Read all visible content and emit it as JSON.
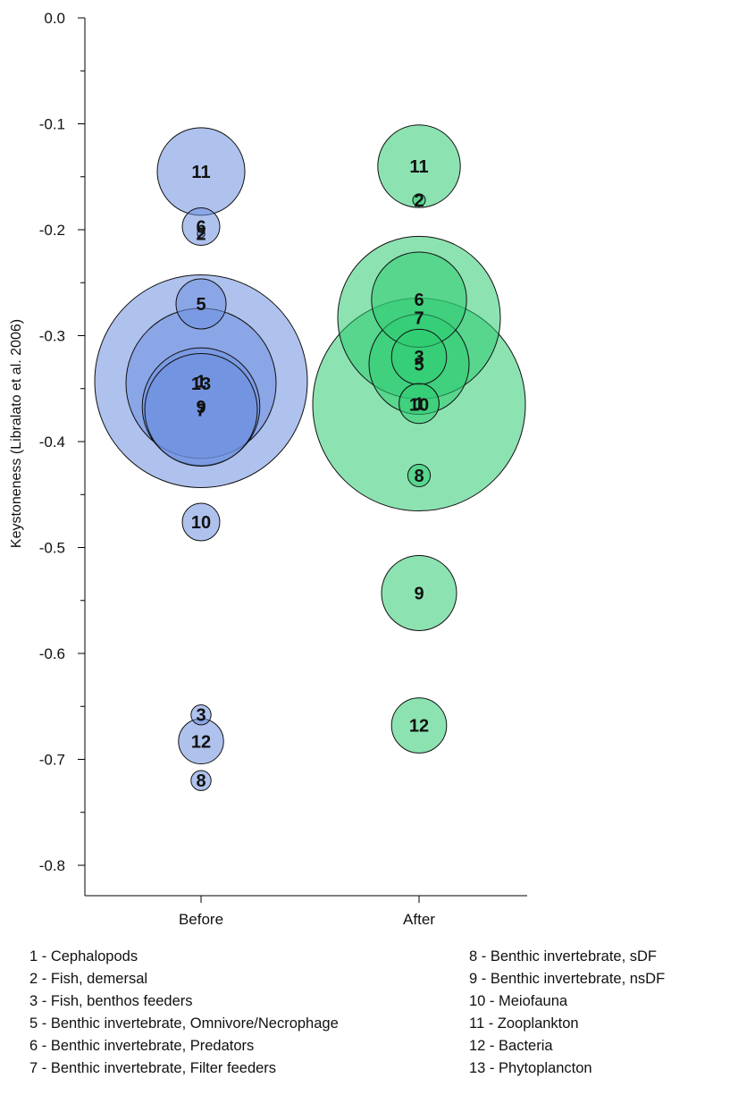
{
  "chart_data": {
    "type": "bubble",
    "xlabel": "",
    "ylabel": "Keystoneness (Libralato et al. 2006)",
    "categories": [
      "Before",
      "After"
    ],
    "ylim": [
      -0.84,
      0.0
    ],
    "yticks": [
      {
        "value": 0.0,
        "label": "0.0"
      },
      {
        "value": -0.1,
        "label": "-0.1"
      },
      {
        "value": -0.2,
        "label": "-0.2"
      },
      {
        "value": -0.3,
        "label": "-0.3"
      },
      {
        "value": -0.4,
        "label": "-0.4"
      },
      {
        "value": -0.5,
        "label": "-0.5"
      },
      {
        "value": -0.6,
        "label": "-0.6"
      },
      {
        "value": -0.7,
        "label": "-0.7"
      },
      {
        "value": -0.8,
        "label": "-0.8"
      }
    ],
    "yminor_step": 0.05,
    "grid": false,
    "series": [
      {
        "category": "Before",
        "color": "#6e8fe0",
        "points": [
          {
            "label": "1",
            "y": -0.343,
            "size": 85
          },
          {
            "label": "13",
            "y": -0.345,
            "size": 60
          },
          {
            "label": "7",
            "y": -0.37,
            "size": 45
          },
          {
            "label": "9",
            "y": -0.367,
            "size": 47
          },
          {
            "label": "11",
            "y": -0.145,
            "size": 35
          },
          {
            "label": "5",
            "y": -0.27,
            "size": 20
          },
          {
            "label": "6",
            "y": -0.197,
            "size": 15
          },
          {
            "label": "2",
            "y": -0.204,
            "size": 3
          },
          {
            "label": "10",
            "y": -0.476,
            "size": 15
          },
          {
            "label": "12",
            "y": -0.683,
            "size": 18
          },
          {
            "label": "3",
            "y": -0.658,
            "size": 8
          },
          {
            "label": "8",
            "y": -0.72,
            "size": 8
          }
        ]
      },
      {
        "category": "After",
        "color": "#2ecc71",
        "points": [
          {
            "label": "10",
            "y": -0.365,
            "size": 85
          },
          {
            "label": "7",
            "y": -0.283,
            "size": 65
          },
          {
            "label": "6",
            "y": -0.266,
            "size": 38
          },
          {
            "label": "5",
            "y": -0.327,
            "size": 40
          },
          {
            "label": "3",
            "y": -0.32,
            "size": 22
          },
          {
            "label": "1",
            "y": -0.364,
            "size": 16
          },
          {
            "label": "11",
            "y": -0.14,
            "size": 33
          },
          {
            "label": "2",
            "y": -0.172,
            "size": 5
          },
          {
            "label": "8",
            "y": -0.432,
            "size": 9
          },
          {
            "label": "9",
            "y": -0.543,
            "size": 30
          },
          {
            "label": "12",
            "y": -0.668,
            "size": 22
          }
        ]
      }
    ],
    "legend": {
      "left": [
        "1 - Cephalopods",
        "2 - Fish, demersal",
        "3 - Fish, benthos feeders",
        "5 - Benthic invertebrate, Omnivore/Necrophage",
        "6 - Benthic invertebrate, Predators",
        "7 - Benthic invertebrate, Filter feeders"
      ],
      "right": [
        "8 - Benthic invertebrate, sDF",
        "9 - Benthic invertebrate, nsDF",
        "10 - Meiofauna",
        "11 - Zooplankton",
        "12 - Bacteria",
        "13 - Phytoplancton"
      ]
    }
  }
}
